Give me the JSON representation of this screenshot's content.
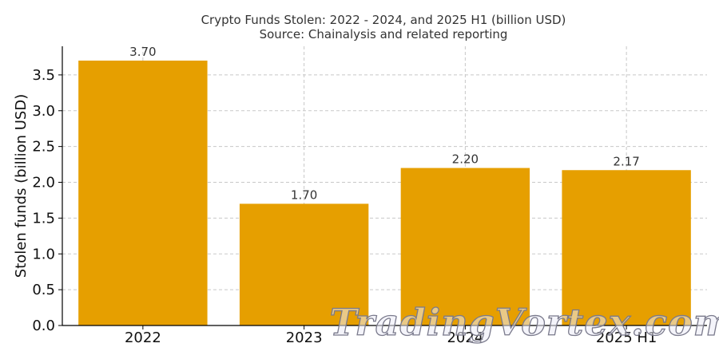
{
  "chart_data": {
    "type": "bar",
    "title": "Crypto Funds Stolen: 2022 - 2024, and 2025 H1 (billion USD)",
    "subtitle": "Source: Chainalysis and related reporting",
    "xlabel": "",
    "ylabel": "Stolen funds (billion USD)",
    "categories": [
      "2022",
      "2023",
      "2024",
      "2025 H1"
    ],
    "values": [
      3.7,
      1.7,
      2.2,
      2.17
    ],
    "data_labels": [
      "3.70",
      "1.70",
      "2.20",
      "2.17"
    ],
    "ylim": [
      0,
      3.9
    ],
    "yticks": [
      0.0,
      0.5,
      1.0,
      1.5,
      2.0,
      2.5,
      3.0,
      3.5
    ],
    "ytick_labels": [
      "0.0",
      "0.5",
      "1.0",
      "1.5",
      "2.0",
      "2.5",
      "3.0",
      "3.5"
    ],
    "grid": true,
    "bar_color": "#E69F00"
  },
  "watermark": "TradingVortex.com"
}
